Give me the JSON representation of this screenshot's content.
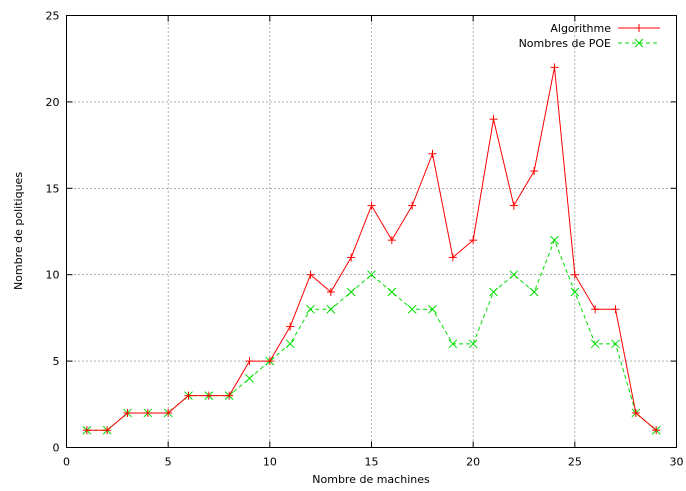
{
  "chart_data": {
    "type": "line",
    "xlabel": "Nombre de machines",
    "ylabel": "Nombre de politiques",
    "xlim": [
      0,
      30
    ],
    "ylim": [
      0,
      25
    ],
    "xticks": [
      0,
      5,
      10,
      15,
      20,
      25,
      30
    ],
    "yticks": [
      0,
      5,
      10,
      15,
      20,
      25
    ],
    "grid": true,
    "legend_position": "top-right",
    "x": [
      1,
      2,
      3,
      4,
      5,
      6,
      7,
      8,
      9,
      10,
      11,
      12,
      13,
      14,
      15,
      16,
      17,
      18,
      19,
      20,
      21,
      22,
      23,
      24,
      25,
      26,
      27,
      28,
      29
    ],
    "series": [
      {
        "name": "Algorithme",
        "color": "#ff0000",
        "marker": "plus",
        "dashed": false,
        "values": [
          1,
          1,
          2,
          2,
          2,
          3,
          3,
          3,
          5,
          5,
          7,
          10,
          9,
          11,
          14,
          12,
          14,
          17,
          11,
          12,
          19,
          14,
          16,
          22,
          10,
          8,
          8,
          2,
          1
        ]
      },
      {
        "name": "Nombres de POE",
        "color": "#00dd00",
        "marker": "cross",
        "dashed": true,
        "values": [
          1,
          1,
          2,
          2,
          2,
          3,
          3,
          3,
          4,
          5,
          6,
          8,
          8,
          9,
          10,
          9,
          8,
          8,
          6,
          6,
          9,
          10,
          9,
          12,
          9,
          6,
          6,
          2,
          1
        ]
      }
    ]
  }
}
